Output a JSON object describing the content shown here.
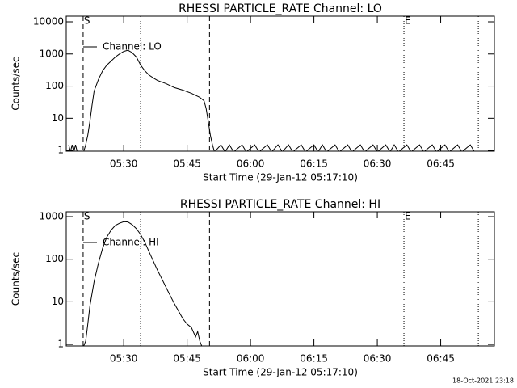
{
  "chart_data": [
    {
      "type": "line",
      "title": "RHESSI PARTICLE_RATE Channel: LO",
      "x_label": "Start Time (29-Jan-12 05:17:10)",
      "y_label": "Counts/sec",
      "log_y": true,
      "legend": "upper left",
      "color": "#000000",
      "xlim": [
        16.4,
        117.7
      ],
      "ylim": [
        0.95,
        15000
      ],
      "xticks": [
        {
          "value": 30,
          "label": "05:30"
        },
        {
          "value": 45,
          "label": "05:45"
        },
        {
          "value": 60,
          "label": "06:00"
        },
        {
          "value": 75,
          "label": "06:15"
        },
        {
          "value": 90,
          "label": "06:30"
        },
        {
          "value": 105,
          "label": "06:45"
        }
      ],
      "yticks": [
        1,
        10,
        100,
        1000,
        10000
      ],
      "markers": [
        {
          "x": 20.4,
          "style": "dashed",
          "label": "S"
        },
        {
          "x": 34,
          "style": "dotted"
        },
        {
          "x": 50.3,
          "style": "dashed"
        },
        {
          "x": 96.3,
          "style": "dotted",
          "label": "E"
        },
        {
          "x": 113.9,
          "style": "dotted"
        }
      ],
      "series": [
        {
          "name": "Channel: LO",
          "color": "#000000",
          "x": [
            17,
            17.4,
            17.8,
            18.2,
            18.6,
            19,
            20.5,
            21,
            21.5,
            22,
            22.5,
            23,
            24,
            25,
            26,
            27,
            28,
            29,
            30,
            31,
            32,
            33,
            34,
            35,
            36,
            37,
            38,
            40,
            42,
            44,
            46,
            48,
            49,
            49.5,
            50,
            50.5,
            51,
            51.5,
            53,
            54,
            55,
            56,
            58,
            59,
            61,
            62,
            64,
            65,
            66.5,
            67.5,
            69,
            70,
            72,
            73,
            75,
            76,
            77,
            78,
            80,
            81,
            83,
            84,
            86,
            87,
            89,
            90,
            92,
            93,
            94,
            95,
            97,
            98,
            100,
            101,
            103,
            104,
            106,
            107,
            109,
            110,
            112,
            113
          ],
          "values": [
            1.5,
            0.9,
            1.5,
            0.9,
            1.5,
            0.9,
            0.9,
            1.5,
            3,
            8,
            25,
            70,
            160,
            300,
            450,
            600,
            800,
            1000,
            1200,
            1300,
            1100,
            800,
            450,
            300,
            220,
            180,
            150,
            120,
            90,
            75,
            60,
            45,
            35,
            20,
            8,
            3,
            1.5,
            0.9,
            1.5,
            0.9,
            1.5,
            0.9,
            1.5,
            0.9,
            1.5,
            0.9,
            1.5,
            0.9,
            1.5,
            0.9,
            1.5,
            0.9,
            1.5,
            0.9,
            1.5,
            0.9,
            1.5,
            0.9,
            1.5,
            0.9,
            1.5,
            0.9,
            1.5,
            0.9,
            1.5,
            0.9,
            1.5,
            0.9,
            1.5,
            0.9,
            1.5,
            0.9,
            1.5,
            0.9,
            1.5,
            0.9,
            1.5,
            0.9,
            1.5,
            0.9,
            1.5,
            0.9
          ]
        }
      ]
    },
    {
      "type": "line",
      "title": "RHESSI PARTICLE_RATE Channel: HI",
      "x_label": "Start Time (29-Jan-12 05:17:10)",
      "y_label": "Counts/sec",
      "log_y": true,
      "legend": "upper left",
      "color": "#000000",
      "xlim": [
        16.4,
        117.7
      ],
      "ylim": [
        0.92,
        1300
      ],
      "xticks": [
        {
          "value": 30,
          "label": "05:30"
        },
        {
          "value": 45,
          "label": "05:45"
        },
        {
          "value": 60,
          "label": "06:00"
        },
        {
          "value": 75,
          "label": "06:15"
        },
        {
          "value": 90,
          "label": "06:30"
        },
        {
          "value": 105,
          "label": "06:45"
        }
      ],
      "yticks": [
        1,
        10,
        100,
        1000
      ],
      "markers": [
        {
          "x": 20.4,
          "style": "dashed",
          "label": "S"
        },
        {
          "x": 34,
          "style": "dotted"
        },
        {
          "x": 50.3,
          "style": "dashed"
        },
        {
          "x": 96.3,
          "style": "dotted",
          "label": "E"
        },
        {
          "x": 113.9,
          "style": "dotted"
        }
      ],
      "series": [
        {
          "name": "Channel: HI",
          "color": "#000000",
          "x": [
            20.5,
            21,
            21.5,
            22,
            23,
            24,
            25,
            26,
            27,
            28,
            29,
            30,
            31,
            32,
            33,
            34,
            35,
            36,
            37,
            38,
            39,
            40,
            41,
            42,
            43,
            44,
            45,
            46,
            47,
            47.5,
            48,
            48.5
          ],
          "values": [
            0.9,
            1.2,
            3,
            8,
            30,
            80,
            180,
            330,
            480,
            620,
            700,
            760,
            750,
            650,
            520,
            380,
            250,
            150,
            90,
            55,
            35,
            22,
            14,
            9,
            6,
            4,
            3,
            2.5,
            1.5,
            2,
            1.2,
            0.9
          ]
        }
      ]
    }
  ],
  "footer": "18-Oct-2021 23:18"
}
